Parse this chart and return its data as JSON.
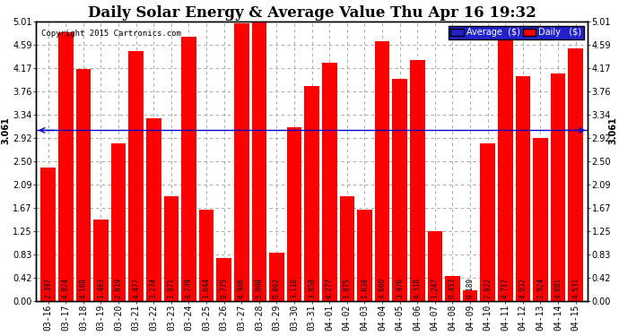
{
  "title": "Daily Solar Energy & Average Value Thu Apr 16 19:32",
  "copyright": "Copyright 2015 Cartronics.com",
  "categories": [
    "03-16",
    "03-17",
    "03-18",
    "03-19",
    "03-20",
    "03-21",
    "03-22",
    "03-23",
    "03-24",
    "03-25",
    "03-26",
    "03-27",
    "03-28",
    "03-29",
    "03-30",
    "03-31",
    "04-01",
    "04-02",
    "04-03",
    "04-04",
    "04-05",
    "04-06",
    "04-07",
    "04-08",
    "04-09",
    "04-10",
    "04-11",
    "04-12",
    "04-13",
    "04-14",
    "04-15"
  ],
  "values": [
    2.397,
    4.824,
    4.168,
    1.463,
    2.819,
    4.477,
    3.274,
    1.871,
    4.739,
    1.644,
    0.775,
    4.986,
    5.008,
    0.862,
    3.118,
    3.858,
    4.277,
    1.875,
    1.638,
    4.66,
    3.976,
    4.318,
    1.247,
    0.453,
    0.189,
    2.822,
    4.717,
    4.032,
    2.924,
    4.081,
    4.531
  ],
  "average": 3.061,
  "bar_color": "#ff0000",
  "average_line_color": "#0000cc",
  "background_color": "#ffffff",
  "plot_bg_color": "#ffffff",
  "grid_color": "#999999",
  "ylim": [
    0.0,
    5.01
  ],
  "yticks": [
    0.0,
    0.42,
    0.83,
    1.25,
    1.67,
    2.09,
    2.5,
    2.92,
    3.34,
    3.76,
    4.17,
    4.59,
    5.01
  ],
  "ytick_labels": [
    "0.00",
    "0.42",
    "0.83",
    "1.25",
    "1.67",
    "2.09",
    "2.50",
    "2.92",
    "3.34",
    "3.76",
    "4.17",
    "4.59",
    "5.01"
  ],
  "title_fontsize": 12,
  "tick_fontsize": 7,
  "bar_value_fontsize": 5.5,
  "legend_avg_color": "#2222cc",
  "legend_daily_color": "#ff0000",
  "avg_label": "Average  ($)",
  "daily_label": "Daily   ($)",
  "avg_label_value": "3.061",
  "border_color": "#000000"
}
